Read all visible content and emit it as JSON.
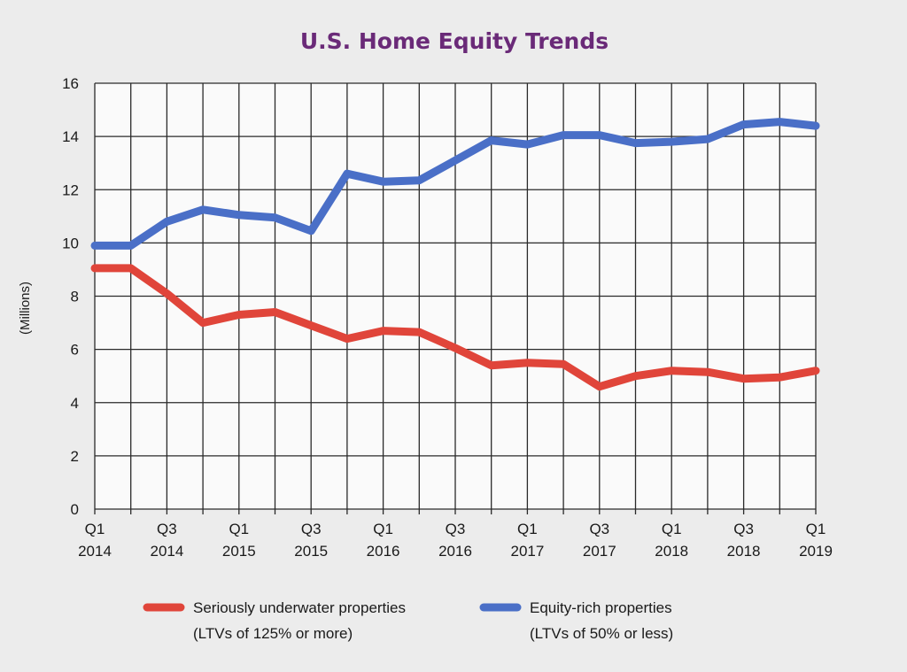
{
  "chart_data": {
    "type": "line",
    "title": "U.S. Home Equity Trends",
    "ylabel": "(Millions)",
    "xlabel": "",
    "ylim": [
      0,
      16
    ],
    "yticks": [
      0,
      2,
      4,
      6,
      8,
      10,
      12,
      14,
      16
    ],
    "grid": true,
    "legend_position": "bottom",
    "quarters": [
      "Q1 2014",
      "Q2 2014",
      "Q3 2014",
      "Q4 2014",
      "Q1 2015",
      "Q2 2015",
      "Q3 2015",
      "Q4 2015",
      "Q1 2016",
      "Q2 2016",
      "Q3 2016",
      "Q4 2016",
      "Q1 2017",
      "Q2 2017",
      "Q3 2017",
      "Q4 2017",
      "Q1 2018",
      "Q2 2018",
      "Q3 2018",
      "Q4 2018",
      "Q1 2019"
    ],
    "xtick_labels": [
      {
        "index": 0,
        "line1": "Q1",
        "line2": "2014"
      },
      {
        "index": 2,
        "line1": "Q3",
        "line2": "2014"
      },
      {
        "index": 4,
        "line1": "Q1",
        "line2": "2015"
      },
      {
        "index": 6,
        "line1": "Q3",
        "line2": "2015"
      },
      {
        "index": 8,
        "line1": "Q1",
        "line2": "2016"
      },
      {
        "index": 10,
        "line1": "Q3",
        "line2": "2016"
      },
      {
        "index": 12,
        "line1": "Q1",
        "line2": "2017"
      },
      {
        "index": 14,
        "line1": "Q3",
        "line2": "2017"
      },
      {
        "index": 16,
        "line1": "Q1",
        "line2": "2018"
      },
      {
        "index": 18,
        "line1": "Q3",
        "line2": "2018"
      },
      {
        "index": 20,
        "line1": "Q1",
        "line2": "2019"
      }
    ],
    "series": [
      {
        "key": "underwater",
        "name": "Seriously underwater properties",
        "subname": "(LTVs of 125% or more)",
        "color": "#e0453a",
        "values": [
          9.05,
          9.05,
          8.1,
          7.0,
          7.3,
          7.4,
          6.9,
          6.4,
          6.7,
          6.65,
          6.05,
          5.4,
          5.5,
          5.45,
          4.6,
          5.0,
          5.2,
          5.15,
          4.9,
          4.95,
          5.2
        ]
      },
      {
        "key": "equity_rich",
        "name": "Equity-rich properties",
        "subname": "(LTVs of 50% or less)",
        "color": "#4a6fc7",
        "values": [
          9.9,
          9.9,
          10.8,
          11.25,
          11.05,
          10.95,
          10.45,
          12.6,
          12.3,
          12.35,
          13.1,
          13.85,
          13.7,
          14.05,
          14.05,
          13.75,
          13.8,
          13.9,
          14.45,
          14.55,
          14.4
        ]
      }
    ]
  },
  "colors": {
    "title": "#6a2a78",
    "background": "#ececec",
    "plot_background": "#fafafa",
    "grid": "#2a2a2a"
  }
}
